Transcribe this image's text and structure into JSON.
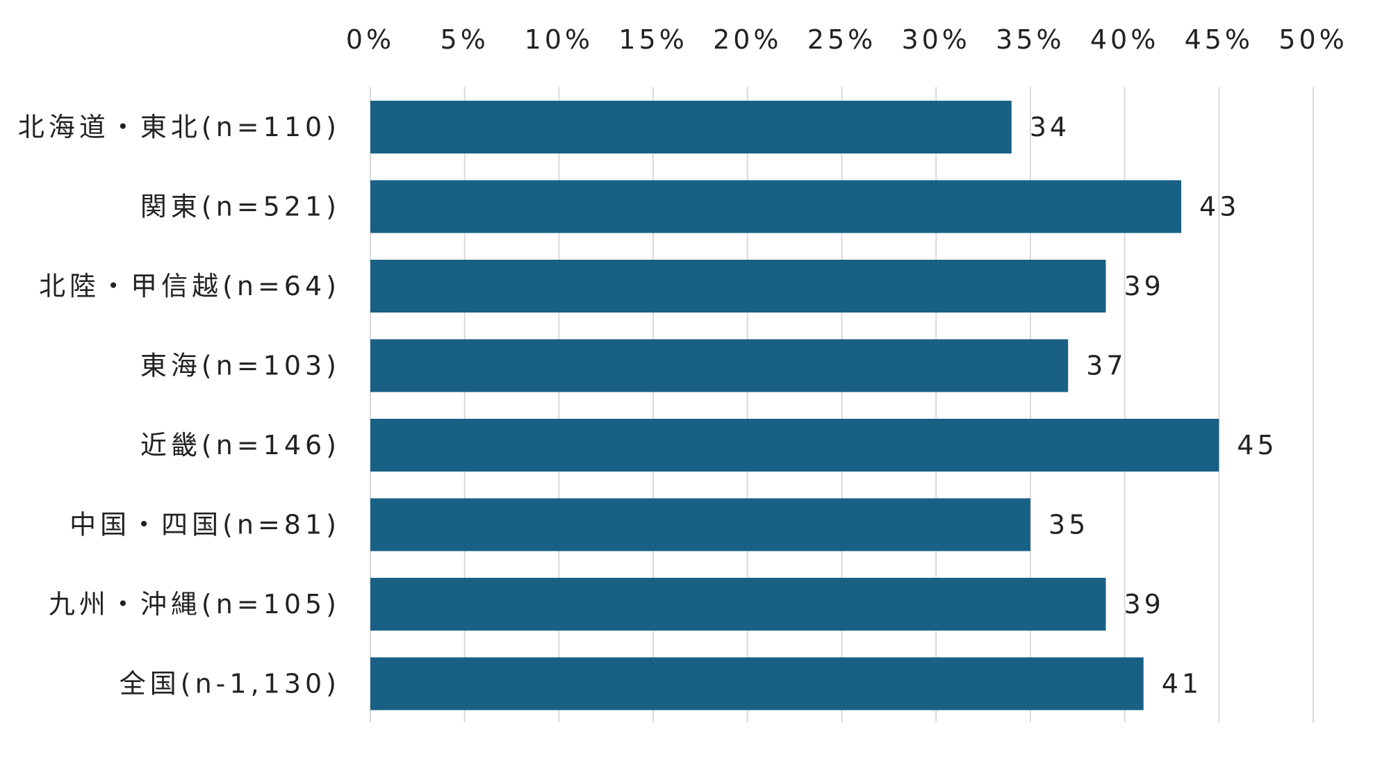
{
  "chart_data": {
    "type": "bar",
    "orientation": "horizontal",
    "categories": [
      "北海道・東北(n=110)",
      "関東(n=521)",
      "北陸・甲信越(n=64)",
      "東海(n=103)",
      "近畿(n=146)",
      "中国・四国(n=81)",
      "九州・沖縄(n=105)",
      "全国(n-1,130)"
    ],
    "values": [
      34,
      43,
      39,
      37,
      45,
      35,
      39,
      41
    ],
    "data_labels": [
      "34",
      "43",
      "39",
      "37",
      "45",
      "35",
      "39",
      "41"
    ],
    "value_axis": {
      "range": [
        0,
        50
      ],
      "ticks": [
        0,
        5,
        10,
        15,
        20,
        25,
        30,
        35,
        40,
        45,
        50
      ],
      "tick_labels": [
        "0%",
        "5%",
        "10%",
        "15%",
        "20%",
        "25%",
        "30%",
        "35%",
        "40%",
        "45%",
        "50%"
      ],
      "position": "top"
    },
    "grid": true,
    "bar_color": "#186184",
    "title": "",
    "xlabel": "",
    "ylabel": ""
  }
}
